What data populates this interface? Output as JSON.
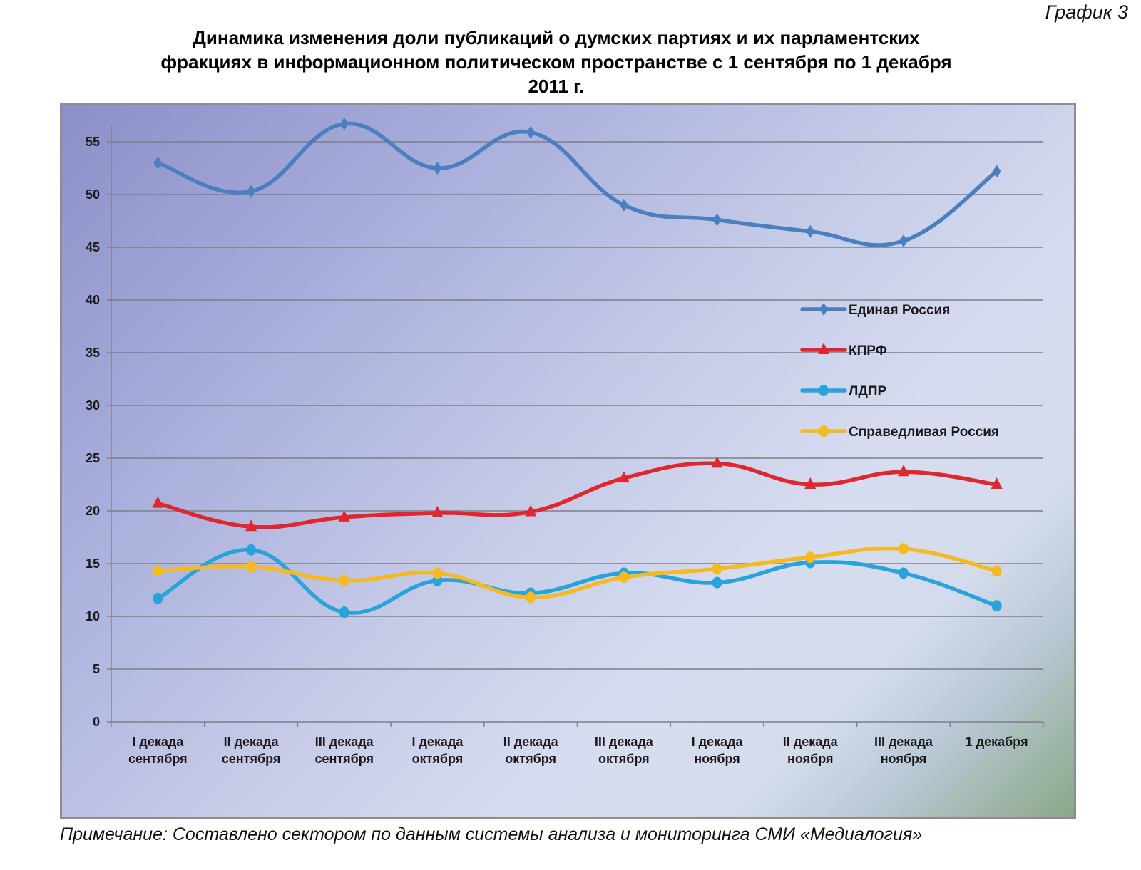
{
  "header": {
    "figure_label": "График 3",
    "title_lines": [
      "Динамика изменения доли публикаций о думских партиях и их парламентских",
      "фракциях в информационном политическом пространстве с 1 сентября по 1 декабря",
      "2011 г."
    ]
  },
  "footer": {
    "note": "Примечание: Составлено сектором по данным системы анализа и мониторинга СМИ «Медиалогия»"
  },
  "chart_data": {
    "type": "line",
    "title": "Динамика изменения доли публикаций о думских партиях и их парламентских фракциях в информационном политическом пространстве с 1 сентября по 1 декабря 2011 г.",
    "xlabel": "",
    "ylabel": "",
    "ylim": [
      0,
      57
    ],
    "yticks": [
      "0",
      "5",
      "10",
      "15",
      "20",
      "25",
      "30",
      "35",
      "40",
      "45",
      "50",
      "55"
    ],
    "ytick_values": [
      0,
      5,
      10,
      15,
      20,
      25,
      30,
      35,
      40,
      45,
      50,
      55
    ],
    "grid": true,
    "legend_position": "right",
    "categories": [
      [
        "I декада",
        "сентября"
      ],
      [
        "II декада",
        "сентября"
      ],
      [
        "III декада",
        "сентября"
      ],
      [
        "I декада",
        "октября"
      ],
      [
        "II декада",
        "октября"
      ],
      [
        "III декада",
        "октября"
      ],
      [
        "I декада",
        "ноября"
      ],
      [
        "II декада",
        "ноября"
      ],
      [
        "III декада",
        "ноября"
      ],
      [
        "1 декабря",
        ""
      ]
    ],
    "series": [
      {
        "name": "Единая Россия",
        "color": "#4a7fc0",
        "marker": "diamond",
        "values": [
          53.0,
          50.3,
          56.7,
          52.5,
          55.9,
          49.0,
          47.6,
          46.5,
          45.6,
          52.2
        ]
      },
      {
        "name": "КПРФ",
        "color": "#e0262e",
        "marker": "triangle",
        "values": [
          20.7,
          18.5,
          19.4,
          19.8,
          19.9,
          23.1,
          24.5,
          22.5,
          23.7,
          22.5
        ]
      },
      {
        "name": "ЛДПР",
        "color": "#29a4db",
        "marker": "circle",
        "values": [
          11.7,
          16.3,
          10.4,
          13.4,
          12.2,
          14.1,
          13.2,
          15.1,
          14.1,
          11.0
        ]
      },
      {
        "name": "Справедливая Россия",
        "color": "#f5b922",
        "marker": "circle",
        "values": [
          14.3,
          14.7,
          13.4,
          14.1,
          11.8,
          13.7,
          14.5,
          15.6,
          16.4,
          14.3
        ]
      }
    ]
  }
}
